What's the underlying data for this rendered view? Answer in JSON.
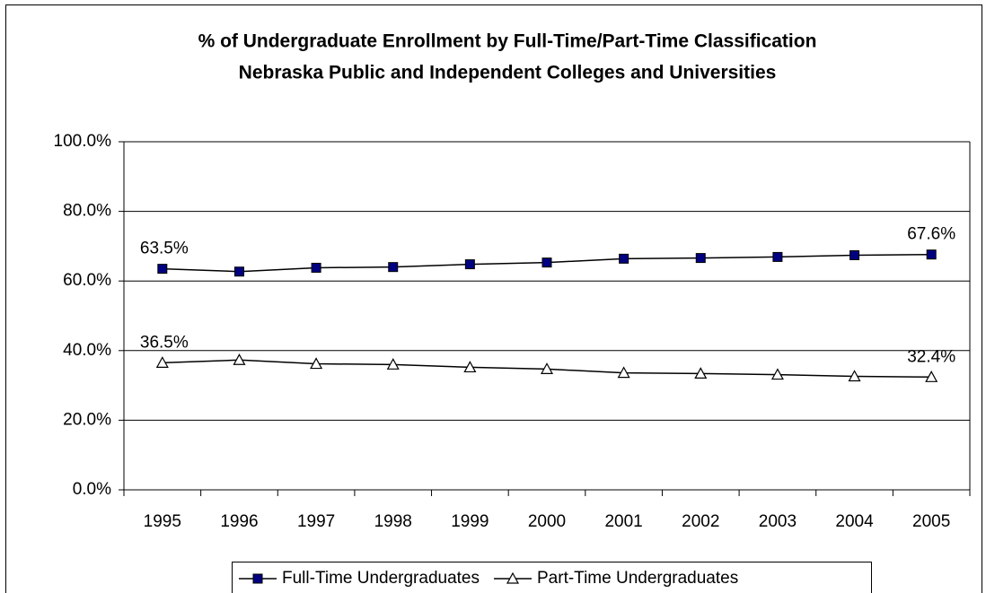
{
  "chart_data": {
    "type": "line",
    "title": [
      "% of Undergraduate Enrollment by Full-Time/Part-Time Classification",
      "Nebraska Public and Independent Colleges and Universities"
    ],
    "categories": [
      "1995",
      "1996",
      "1997",
      "1998",
      "1999",
      "2000",
      "2001",
      "2002",
      "2003",
      "2004",
      "2005"
    ],
    "series": [
      {
        "name": "Full-Time Undergraduates",
        "color": "#000080",
        "marker": "square",
        "values": [
          63.5,
          62.7,
          63.8,
          64.0,
          64.8,
          65.3,
          66.4,
          66.6,
          66.9,
          67.4,
          67.6
        ],
        "value_labels": [
          "63.5%",
          null,
          null,
          null,
          null,
          null,
          null,
          null,
          null,
          null,
          "67.6%"
        ]
      },
      {
        "name": "Part-Time Undergraduates",
        "color": "#ffffff",
        "marker": "triangle",
        "values": [
          36.5,
          37.3,
          36.2,
          36.0,
          35.2,
          34.7,
          33.6,
          33.4,
          33.1,
          32.6,
          32.4
        ],
        "value_labels": [
          "36.5%",
          null,
          null,
          null,
          null,
          null,
          null,
          null,
          null,
          null,
          "32.4%"
        ]
      }
    ],
    "ylim": [
      0,
      100
    ],
    "yticks": [
      {
        "value": 0,
        "label": "0.0%"
      },
      {
        "value": 20,
        "label": "20.0%"
      },
      {
        "value": 40,
        "label": "40.0%"
      },
      {
        "value": 60,
        "label": "60.0%"
      },
      {
        "value": 80,
        "label": "80.0%"
      },
      {
        "value": 100,
        "label": "100.0%"
      }
    ],
    "grid": true,
    "legend": "bottom"
  }
}
